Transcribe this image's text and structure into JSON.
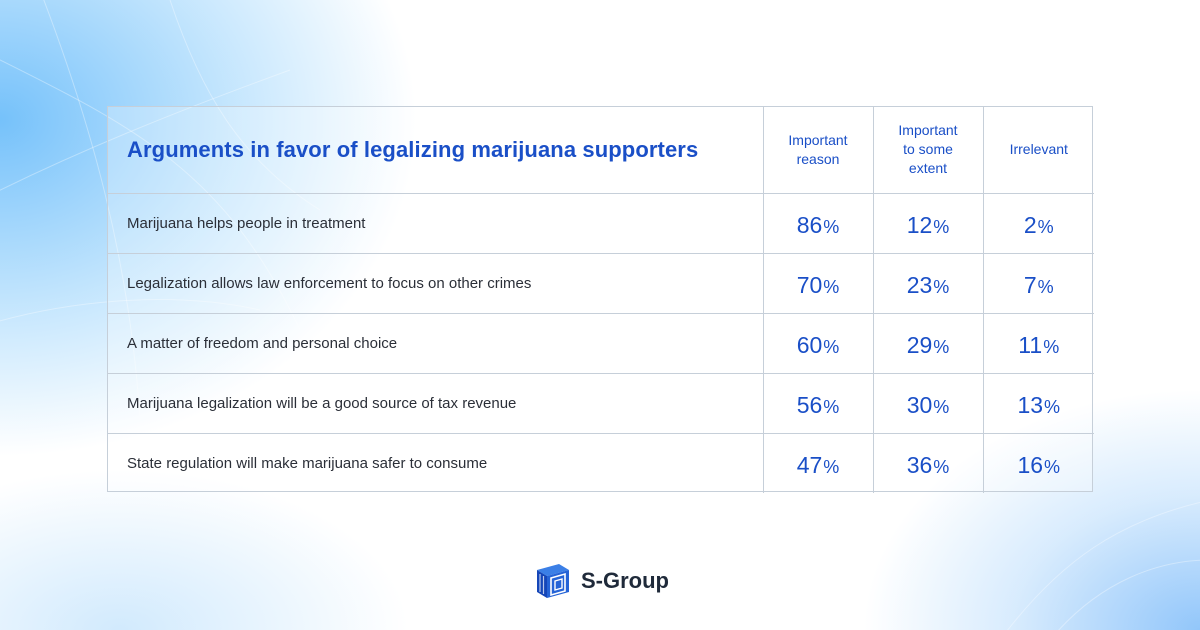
{
  "chart_data": {
    "type": "table",
    "title": "Arguments in favor of legalizing marijuana supporters",
    "columns": [
      "Important reason",
      "Important to some extent",
      "Irrelevant"
    ],
    "column_lines": [
      [
        "Important",
        "reason"
      ],
      [
        "Important",
        "to some",
        "extent"
      ],
      [
        "Irrelevant"
      ]
    ],
    "unit": "%",
    "rows": [
      {
        "label": "Marijuana helps people in treatment",
        "values": [
          86,
          12,
          2
        ]
      },
      {
        "label": "Legalization allows law enforcement to focus on other crimes",
        "values": [
          70,
          23,
          7
        ]
      },
      {
        "label": "A matter of freedom and personal choice",
        "values": [
          60,
          29,
          11
        ]
      },
      {
        "label": "Marijuana legalization will be a good source of tax revenue",
        "values": [
          56,
          30,
          13
        ]
      },
      {
        "label": "State regulation will make marijuana safer to consume",
        "values": [
          47,
          36,
          16
        ]
      }
    ]
  },
  "brand": {
    "name": "S-Group",
    "logo_icon": "s-group-logo-icon"
  },
  "colors": {
    "accent": "#1a4fc7",
    "text": "#2b2f38",
    "border": "#c6cfd9"
  }
}
